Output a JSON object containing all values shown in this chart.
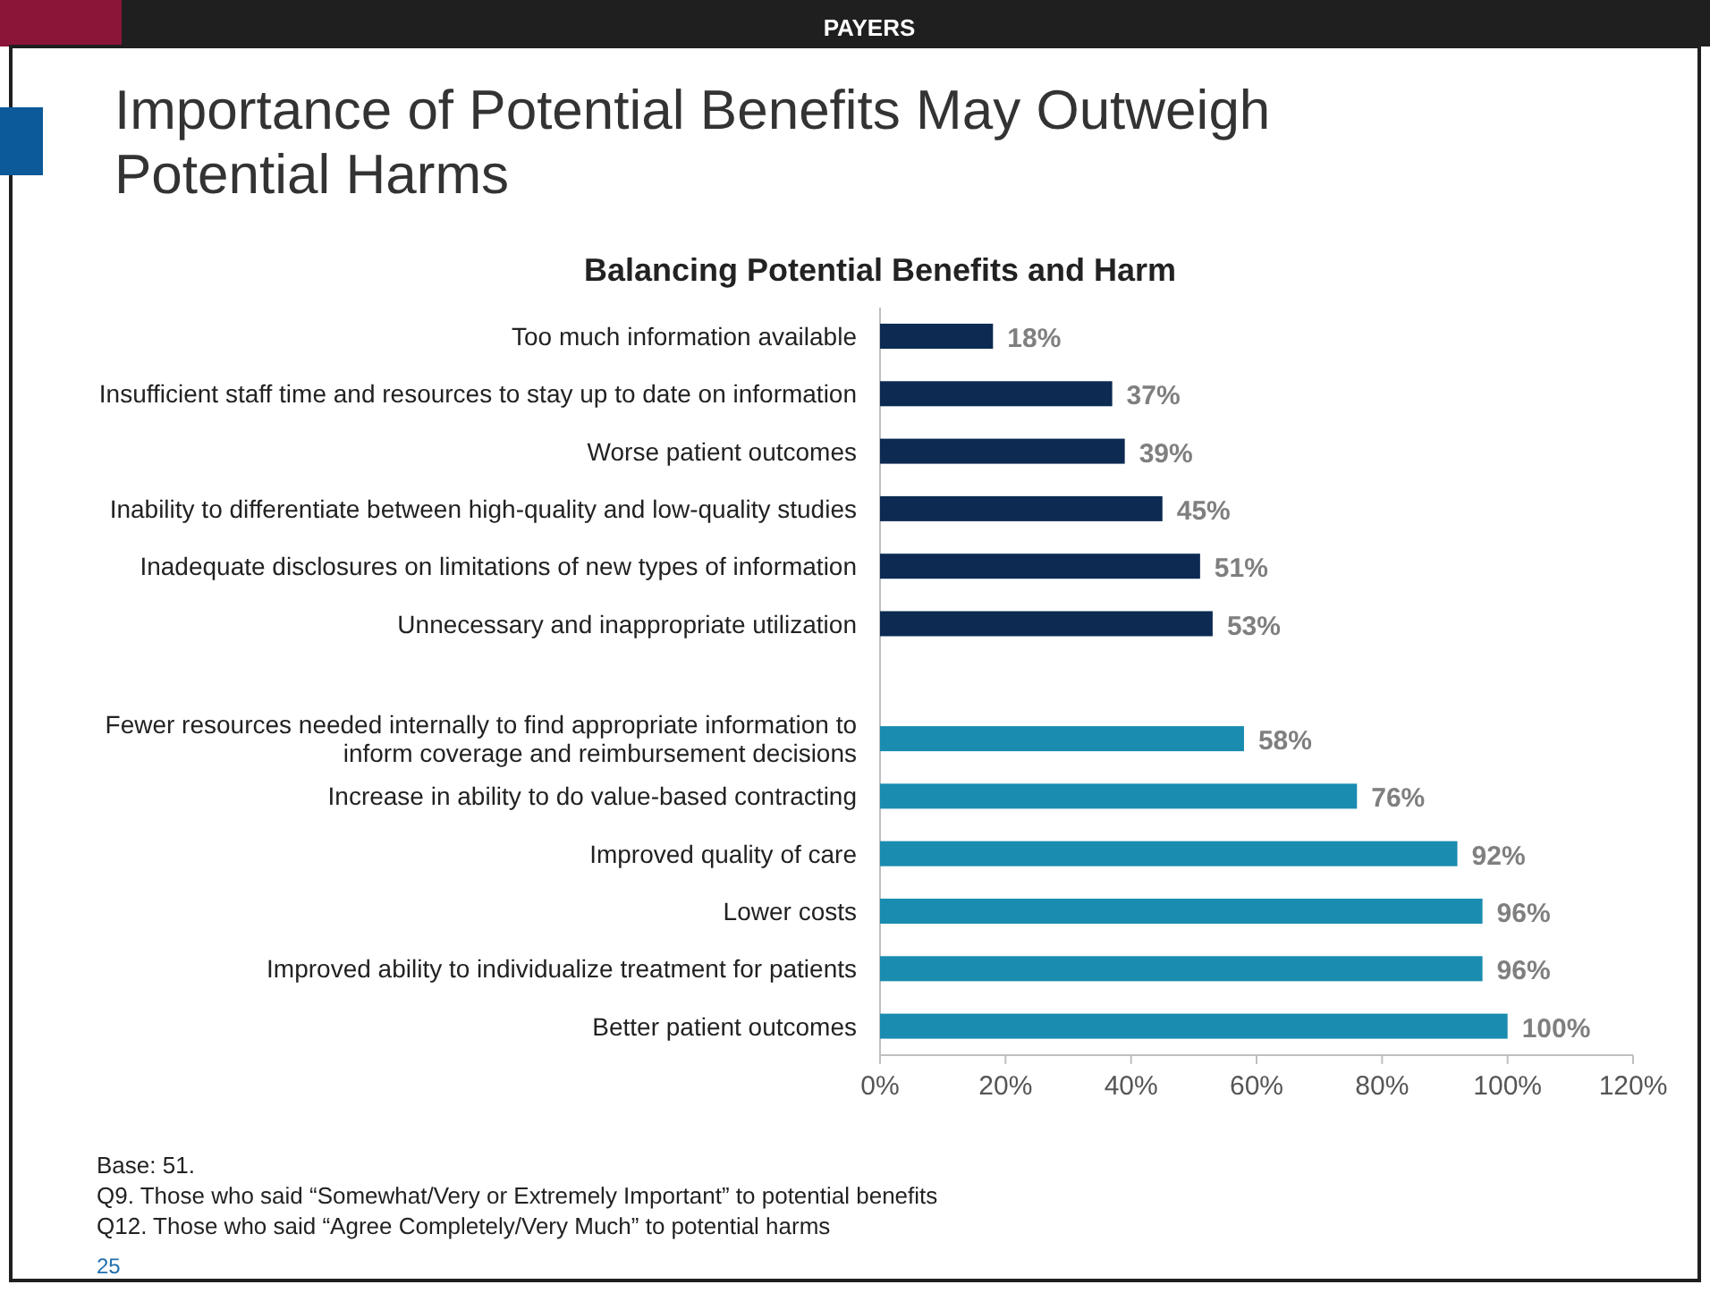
{
  "chart_data": {
    "type": "bar",
    "orientation": "horizontal",
    "subtitle": "Importance of Potential Benefits May Outweigh Potential Harms",
    "title": "Balancing Potential Benefits and Harm",
    "categories": [
      "Too much information available",
      "Insufficient staff time and resources to stay up to date on information",
      "Worse patient outcomes",
      "Inability to differentiate between high-quality and low-quality studies",
      "Inadequate disclosures on limitations of new types of information",
      "Unnecessary and inappropriate utilization",
      null,
      "Fewer resources needed internally to find appropriate information to inform coverage and reimbursement decisions",
      "Increase in ability to do value-based contracting",
      "Improved quality of care",
      "Lower costs",
      "Improved ability to individualize treatment for patients",
      "Better patient outcomes"
    ],
    "values": [
      18,
      37,
      39,
      45,
      51,
      53,
      null,
      58,
      76,
      92,
      96,
      96,
      100
    ],
    "value_labels": [
      "18%",
      "37%",
      "39%",
      "45%",
      "51%",
      "53%",
      null,
      "58%",
      "76%",
      "92%",
      "96%",
      "96%",
      "100%"
    ],
    "colors": [
      "#0c2a52",
      "#0c2a52",
      "#0c2a52",
      "#0c2a52",
      "#0c2a52",
      "#0c2a52",
      null,
      "#1a8cb0",
      "#1a8cb0",
      "#1a8cb0",
      "#1a8cb0",
      "#1a8cb0",
      "#1a8cb0"
    ],
    "xlim": [
      0,
      120
    ],
    "xticks": [
      {
        "value": 0,
        "label": "0%"
      },
      {
        "value": 20,
        "label": "20%"
      },
      {
        "value": 40,
        "label": "40%"
      },
      {
        "value": 60,
        "label": "60%"
      },
      {
        "value": 80,
        "label": "80%"
      },
      {
        "value": 100,
        "label": "100%"
      },
      {
        "value": 120,
        "label": "120%"
      }
    ],
    "grid": false,
    "annotations": [
      "PAYERS",
      "Base: 51.",
      "Q9. Those who said “Somewhat/Very or Extremely Important” to potential benefits",
      "Q12. Those who said “Agree Completely/Very Much” to potential harms",
      "25"
    ]
  }
}
